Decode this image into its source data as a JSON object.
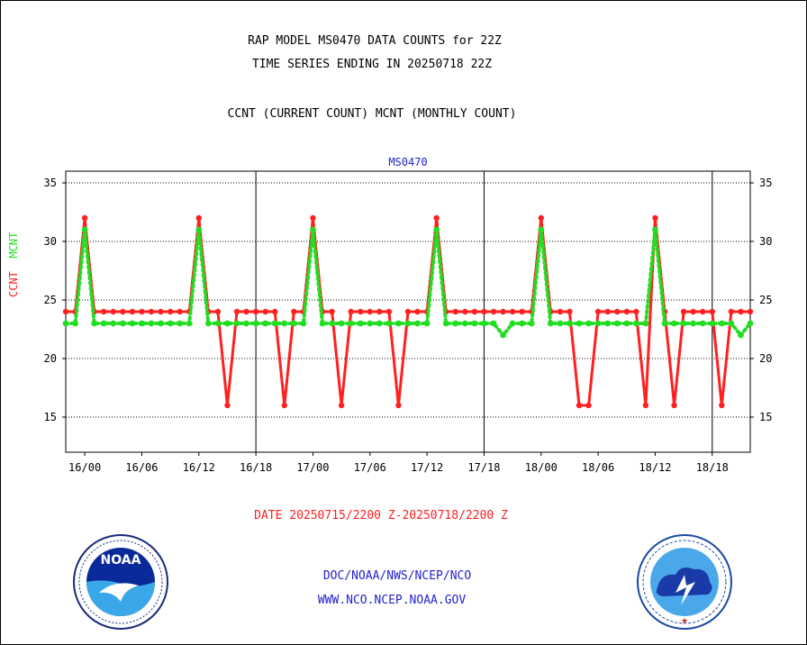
{
  "header": {
    "title_line1": "RAP MODEL MS0470 DATA COUNTS for 22Z",
    "title_line2": "TIME SERIES ENDING IN 20250718 22Z",
    "subtitle": "CCNT (CURRENT COUNT) MCNT (MONTHLY COUNT)"
  },
  "ylabel": {
    "ccnt": "CCNT",
    "mcnt": "MCNT"
  },
  "date_range": "DATE 20250715/2200 Z-20250718/2200 Z",
  "footer": {
    "line1": "DOC/NOAA/NWS/NCEP/NCO",
    "line2": "WWW.NCO.NCEP.NOAA.GOV"
  },
  "logos": {
    "left": "NOAA",
    "right": "NATIONAL WEATHER SERVICE"
  },
  "colors": {
    "ccnt": "#ff2020",
    "mcnt": "#22dd22",
    "title_small": "#2222cc",
    "date": "#ff2020"
  },
  "chart_data": {
    "type": "line",
    "title": "MS0470",
    "x_unit": "hours from 16/00",
    "xlim": [
      -2,
      70
    ],
    "ylim": [
      12,
      36
    ],
    "yticks": [
      15,
      20,
      25,
      30,
      35
    ],
    "xticks": [
      {
        "x": 0,
        "label": "16/00"
      },
      {
        "x": 6,
        "label": "16/06"
      },
      {
        "x": 12,
        "label": "16/12"
      },
      {
        "x": 18,
        "label": "16/18"
      },
      {
        "x": 24,
        "label": "17/00"
      },
      {
        "x": 30,
        "label": "17/06"
      },
      {
        "x": 36,
        "label": "17/12"
      },
      {
        "x": 42,
        "label": "17/18"
      },
      {
        "x": 48,
        "label": "18/00"
      },
      {
        "x": 54,
        "label": "18/06"
      },
      {
        "x": 60,
        "label": "18/12"
      },
      {
        "x": 66,
        "label": "18/18"
      }
    ],
    "day_boundaries": [
      18,
      42,
      66
    ],
    "grid": "horizontal dotted",
    "x": [
      -2,
      -1,
      0,
      1,
      2,
      3,
      4,
      5,
      6,
      7,
      8,
      9,
      10,
      11,
      12,
      13,
      14,
      15,
      16,
      17,
      18,
      19,
      20,
      21,
      22,
      23,
      24,
      25,
      26,
      27,
      28,
      29,
      30,
      31,
      32,
      33,
      34,
      35,
      36,
      37,
      38,
      39,
      40,
      41,
      42,
      43,
      44,
      45,
      46,
      47,
      48,
      49,
      50,
      51,
      52,
      53,
      54,
      55,
      56,
      57,
      58,
      59,
      60,
      61,
      62,
      63,
      64,
      65,
      66,
      67,
      68,
      69,
      70
    ],
    "series": [
      {
        "name": "CCNT",
        "values": [
          24,
          24,
          32,
          24,
          24,
          24,
          24,
          24,
          24,
          24,
          24,
          24,
          24,
          24,
          32,
          24,
          24,
          16,
          24,
          24,
          24,
          24,
          24,
          16,
          24,
          24,
          32,
          24,
          24,
          16,
          24,
          24,
          24,
          24,
          24,
          16,
          24,
          24,
          24,
          32,
          24,
          24,
          24,
          24,
          24,
          24,
          24,
          24,
          24,
          24,
          32,
          24,
          24,
          24,
          16,
          16,
          24,
          24,
          24,
          24,
          24,
          16,
          32,
          24,
          16,
          24,
          24,
          24,
          24,
          16,
          24,
          24,
          24
        ]
      },
      {
        "name": "MCNT",
        "values": [
          23,
          23,
          31,
          23,
          23,
          23,
          23,
          23,
          23,
          23,
          23,
          23,
          23,
          23,
          31,
          23,
          23,
          23,
          23,
          23,
          23,
          23,
          23,
          23,
          23,
          23,
          31,
          23,
          23,
          23,
          23,
          23,
          23,
          23,
          23,
          23,
          23,
          23,
          23,
          31,
          23,
          23,
          23,
          23,
          23,
          23,
          22,
          23,
          23,
          23,
          31,
          23,
          23,
          23,
          23,
          23,
          23,
          23,
          23,
          23,
          23,
          23,
          31,
          23,
          23,
          23,
          23,
          23,
          23,
          23,
          23,
          22,
          23
        ]
      }
    ]
  }
}
